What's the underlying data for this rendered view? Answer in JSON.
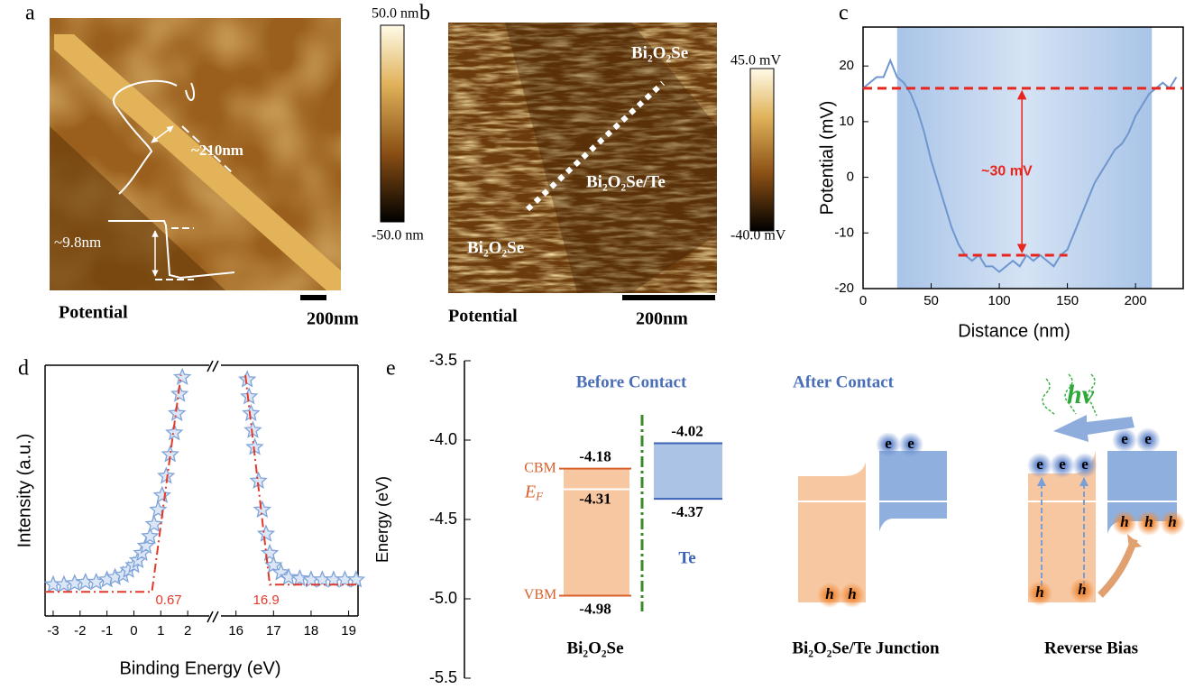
{
  "panel_a": {
    "label": "a",
    "width_label": "~210nm",
    "height_label": "~9.8nm",
    "caption": "Potential",
    "scale_bar": "200nm",
    "colorbar": {
      "max": "50.0 nm",
      "min": "-50.0 nm"
    }
  },
  "panel_b": {
    "label": "b",
    "regions": [
      "Bi₂O₂Se",
      "Bi₂O₂Se/Te",
      "Bi₂O₂Se"
    ],
    "caption": "Potential",
    "scale_bar": "200nm",
    "colorbar": {
      "max": "45.0 mV",
      "min": "-40.0 mV"
    }
  },
  "chart_data": [
    {
      "type": "line",
      "panel_label": "c",
      "x_label": "Distance (nm)",
      "y_label": "Potential (mV)",
      "xlim": [
        0,
        235
      ],
      "ylim": [
        -20,
        27
      ],
      "xticks": [
        0,
        50,
        100,
        150,
        200
      ],
      "yticks": [
        -20,
        -10,
        0,
        10,
        20
      ],
      "x": [
        0,
        5,
        10,
        15,
        20,
        25,
        30,
        35,
        40,
        45,
        50,
        55,
        60,
        65,
        70,
        75,
        80,
        85,
        90,
        95,
        100,
        105,
        110,
        115,
        120,
        125,
        130,
        135,
        140,
        145,
        150,
        155,
        160,
        165,
        170,
        175,
        180,
        185,
        190,
        195,
        200,
        205,
        210,
        215,
        220,
        225,
        230
      ],
      "series": [
        {
          "color": "#6f96cf",
          "values": [
            16,
            17,
            18,
            18,
            21,
            18,
            17,
            15,
            12,
            8,
            3,
            -1,
            -5,
            -9,
            -12,
            -14,
            -15,
            -14,
            -16,
            -16,
            -17,
            -16,
            -15,
            -16,
            -14,
            -15,
            -14,
            -15,
            -16,
            -14,
            -13,
            -10,
            -7,
            -4,
            -1,
            1,
            3,
            5,
            6,
            8,
            11,
            13,
            15,
            16,
            17,
            16,
            18
          ]
        }
      ],
      "shaded_x": [
        25,
        212
      ],
      "reference_lines": [
        {
          "value": 16
        },
        {
          "value": -14,
          "x": [
            70,
            150
          ]
        }
      ],
      "reference_color": "#e8261e",
      "annotation": "~30 mV"
    },
    {
      "type": "scatter",
      "panel_label": "d",
      "x_label": "Binding Energy (eV)",
      "y_label": "Intensity (a.u.)",
      "ylim": [
        0,
        104
      ],
      "color": "#7fa3d8",
      "fit_color": "#e23a2a",
      "segments": [
        {
          "xlim": [
            -3.3,
            2.8
          ],
          "xticks": [
            -3,
            -2,
            -1,
            0,
            1,
            2
          ],
          "x": [
            -3,
            -2.6,
            -2.2,
            -1.8,
            -1.4,
            -1,
            -0.7,
            -0.4,
            -0.2,
            0,
            0.15,
            0.3,
            0.45,
            0.6,
            0.75,
            0.9,
            1.05,
            1.2,
            1.35,
            1.5,
            1.6,
            1.7,
            1.8
          ],
          "values": [
            13,
            13,
            13.5,
            14,
            14,
            15,
            16,
            17,
            19,
            21,
            23,
            26,
            29,
            33,
            38,
            44,
            50,
            58,
            67,
            76,
            84,
            92,
            99
          ],
          "fit": {
            "x": [
              -3.3,
              0.67,
              1.75
            ],
            "values": [
              10,
              10,
              100
            ]
          },
          "onset": 0.67
        },
        {
          "xlim": [
            15.6,
            19.25
          ],
          "xticks": [
            16,
            17,
            18,
            19
          ],
          "x": [
            16.3,
            16.35,
            16.4,
            16.45,
            16.5,
            16.6,
            16.7,
            16.8,
            16.9,
            17,
            17.2,
            17.4,
            17.7,
            18,
            18.3,
            18.6,
            18.9,
            19.2
          ],
          "values": [
            98,
            91,
            84,
            77,
            70,
            56,
            44,
            34,
            26,
            21,
            18,
            16,
            15.5,
            15,
            15,
            15,
            15,
            15
          ],
          "fit": {
            "x": [
              16.25,
              16.9,
              19.25
            ],
            "values": [
              100,
              13,
              13
            ]
          },
          "onset": 16.9
        }
      ]
    },
    {
      "type": "band",
      "panel_label": "e",
      "y_label": "Energy (eV)",
      "ylim": [
        -5.5,
        -3.5
      ],
      "yticks": [
        -3.5,
        {
          "value": -4,
          "label": "-4.0"
        },
        -4.5,
        {
          "value": -5,
          "label": "-5.0"
        },
        -5.5
      ],
      "before_title": "Before Contact",
      "after_title": "After Contact",
      "bi2o2se": {
        "name": "Bi₂O₂Se",
        "cbm": -4.18,
        "ef": -4.31,
        "vbm": -4.98,
        "color": "#f7c7a1",
        "line_color": "#d8602a"
      },
      "te": {
        "name": "Te",
        "cbm": -4.02,
        "vbm": -4.37,
        "color": "#8fb0de",
        "line_color": "#3b62b5"
      },
      "cbm_label": "CBM",
      "vbm_label": "VBM",
      "ef_label": "E",
      "ef_sub": "F",
      "junction_label": "Bi₂O₂Se/Te Junction",
      "bias_label": "Reverse Bias",
      "photon": "hν",
      "electron": "e",
      "hole": "h"
    }
  ]
}
